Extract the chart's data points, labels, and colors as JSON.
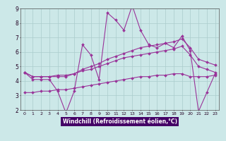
{
  "xlabel": "Windchill (Refroidissement éolien,°C)",
  "bg_color": "#cce8e8",
  "grid_color": "#aacccc",
  "line_color": "#993399",
  "axis_label_bg": "#330066",
  "xlim": [
    -0.5,
    23.5
  ],
  "ylim": [
    2,
    9
  ],
  "xticks": [
    0,
    1,
    2,
    3,
    4,
    5,
    6,
    7,
    8,
    9,
    10,
    11,
    12,
    13,
    14,
    15,
    16,
    17,
    18,
    19,
    20,
    21,
    22,
    23
  ],
  "yticks": [
    2,
    3,
    4,
    5,
    6,
    7,
    8,
    9
  ],
  "series": [
    [
      4.6,
      4.1,
      4.1,
      4.1,
      3.3,
      1.8,
      3.3,
      6.5,
      5.8,
      4.1,
      8.7,
      8.2,
      7.5,
      9.2,
      7.5,
      6.5,
      6.3,
      6.6,
      6.3,
      7.1,
      6.1,
      1.9,
      3.2,
      4.5
    ],
    [
      4.6,
      4.3,
      4.3,
      4.3,
      4.4,
      4.4,
      4.5,
      4.7,
      4.8,
      5.0,
      5.2,
      5.4,
      5.6,
      5.7,
      5.8,
      5.9,
      6.0,
      6.1,
      6.2,
      6.4,
      5.8,
      5.0,
      4.8,
      4.6
    ],
    [
      4.6,
      4.3,
      4.3,
      4.3,
      4.3,
      4.3,
      4.5,
      4.8,
      5.0,
      5.2,
      5.5,
      5.7,
      5.9,
      6.1,
      6.3,
      6.4,
      6.5,
      6.6,
      6.7,
      6.9,
      6.3,
      5.5,
      5.3,
      5.1
    ],
    [
      3.2,
      3.2,
      3.3,
      3.3,
      3.4,
      3.4,
      3.5,
      3.6,
      3.7,
      3.8,
      3.9,
      4.0,
      4.1,
      4.2,
      4.3,
      4.3,
      4.4,
      4.4,
      4.5,
      4.5,
      4.3,
      4.3,
      4.3,
      4.4
    ]
  ]
}
